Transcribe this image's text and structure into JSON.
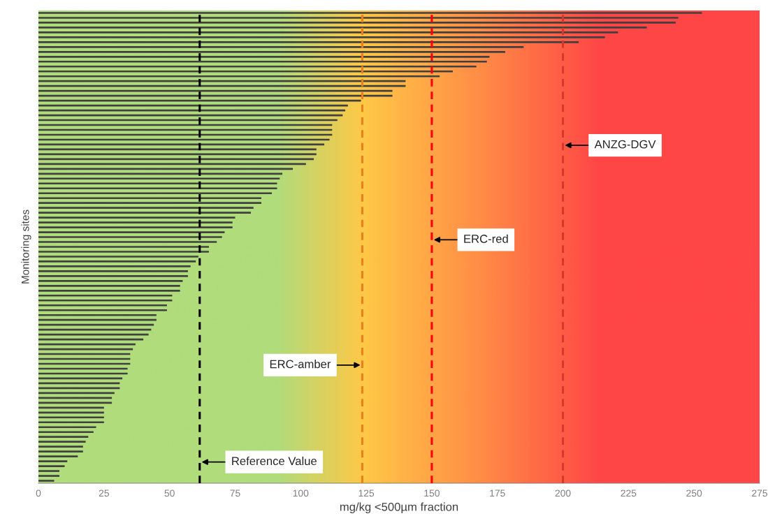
{
  "chart_data": {
    "type": "bar",
    "orientation": "horizontal",
    "xlabel": "mg/kg <500µm fraction",
    "ylabel": "Monitoring sites",
    "categories": [
      null,
      null,
      null,
      null,
      null,
      null,
      null,
      null,
      null,
      null,
      null,
      null,
      null,
      null,
      null,
      null,
      null,
      null,
      null,
      null,
      null,
      null,
      null,
      null,
      null,
      null,
      null,
      null,
      null,
      null,
      null,
      null,
      null,
      null,
      null,
      null,
      null,
      null,
      null,
      null,
      null,
      null,
      null,
      null,
      null,
      null,
      null,
      null,
      null,
      null,
      null,
      null,
      null,
      null,
      null,
      null,
      null,
      null,
      null,
      null,
      null,
      null,
      null,
      null,
      null,
      null,
      null,
      null,
      null,
      null,
      null,
      null,
      null,
      null,
      null,
      null,
      null,
      null,
      null,
      null,
      null,
      null,
      null,
      null,
      null,
      null,
      null,
      null,
      null,
      null,
      null,
      null,
      null,
      null,
      null,
      null,
      null
    ],
    "values": [
      253,
      244,
      243,
      232,
      221,
      216,
      206,
      185,
      178,
      172,
      171,
      167,
      158,
      153,
      140,
      140,
      135,
      135,
      123,
      118,
      117,
      116,
      114,
      112,
      112,
      112,
      111,
      109,
      106,
      106,
      105,
      102,
      97,
      93,
      92,
      91,
      91,
      89,
      85,
      85,
      82,
      81,
      75,
      74,
      74,
      71,
      70,
      68,
      65,
      65,
      61,
      60,
      58,
      57,
      57,
      55,
      54,
      54,
      51,
      51,
      49,
      49,
      45,
      45,
      44,
      43,
      42,
      40,
      37,
      36,
      35,
      35,
      35,
      34,
      34,
      32,
      31,
      31,
      29,
      28,
      28,
      25,
      25,
      25,
      25,
      22,
      21,
      19,
      18,
      17,
      17,
      15,
      11,
      10,
      8,
      8,
      6
    ],
    "color": "#404040",
    "xlim": [
      0,
      275
    ],
    "xticks": [
      0,
      25,
      50,
      75,
      100,
      125,
      150,
      175,
      200,
      225,
      250,
      275
    ],
    "ref_lines": [
      {
        "axis": "x",
        "value": 61.5,
        "label": "Reference Value",
        "color": "#000000",
        "line_style": "dashed"
      },
      {
        "axis": "x",
        "value": 123.5,
        "label": "ERC-amber",
        "color": "#e8801e",
        "line_style": "dashed"
      },
      {
        "axis": "x",
        "value": 150,
        "label": "ERC-red",
        "color": "#ff0000",
        "line_style": "dashed"
      },
      {
        "axis": "x",
        "value": 200,
        "label": "ANZG-DGV",
        "color": "#d6382e",
        "line_style": "dashed"
      }
    ],
    "grid": false,
    "legend": false,
    "tick_labels": "x"
  }
}
